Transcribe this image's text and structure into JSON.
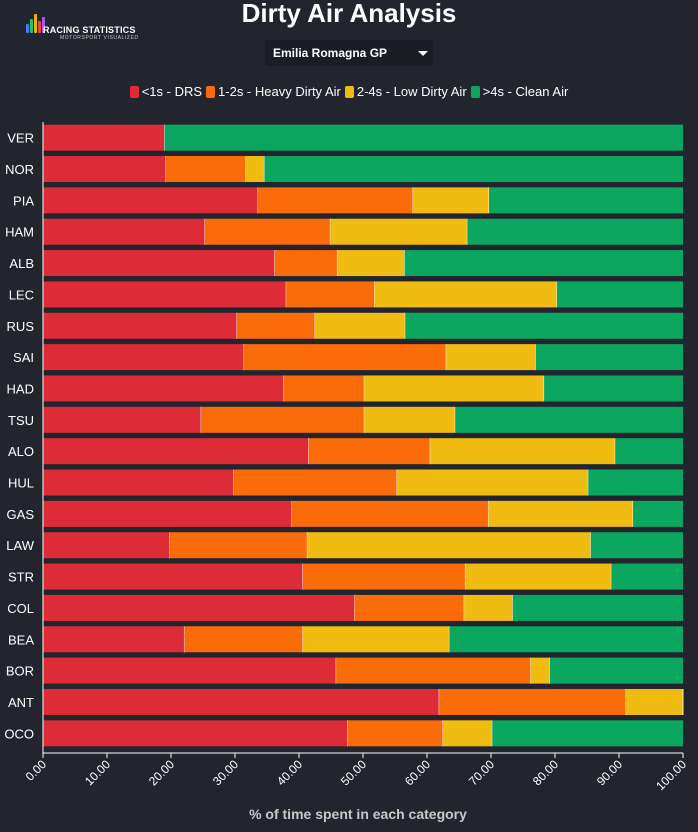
{
  "header": {
    "title": "Dirty Air Analysis",
    "logo_text": "RACING STATISTICS",
    "logo_subtitle": "MOTORSPORT VISUALIZED",
    "race_select": "Emilia Romagna GP"
  },
  "colors": {
    "drs": "#dd2b37",
    "heavy": "#fa6b0a",
    "low": "#f1bc12",
    "clean": "#0ba760",
    "background": "#22252e"
  },
  "chart_data": {
    "type": "bar",
    "orientation": "horizontal",
    "stacked": true,
    "xlabel": "% of time spent in each category",
    "ylabel": "",
    "xlim": [
      0,
      100
    ],
    "x_ticks": [
      "0.00",
      "10.00",
      "20.00",
      "30.00",
      "40.00",
      "50.00",
      "60.00",
      "70.00",
      "80.00",
      "90.00",
      "100.00"
    ],
    "legend_position": "top",
    "categories": [
      "VER",
      "NOR",
      "PIA",
      "HAM",
      "ALB",
      "LEC",
      "RUS",
      "SAI",
      "HAD",
      "TSU",
      "ALO",
      "HUL",
      "GAS",
      "LAW",
      "STR",
      "COL",
      "BEA",
      "BOR",
      "ANT",
      "OCO"
    ],
    "series": [
      {
        "name": "<1s - DRS",
        "color": "#dd2b37",
        "values": [
          19.0,
          19.2,
          33.6,
          25.3,
          36.2,
          38.0,
          30.3,
          31.4,
          37.6,
          24.7,
          41.5,
          29.8,
          38.9,
          19.8,
          40.6,
          48.7,
          22.1,
          45.8,
          61.9,
          47.6
        ]
      },
      {
        "name": "1-2s - Heavy Dirty Air",
        "color": "#fa6b0a",
        "values": [
          0.0,
          12.5,
          24.2,
          19.6,
          9.8,
          13.8,
          12.2,
          31.6,
          12.6,
          25.5,
          19.0,
          25.5,
          30.7,
          21.5,
          25.4,
          17.1,
          18.5,
          30.4,
          29.2,
          14.9
        ]
      },
      {
        "name": "2-4s - Low Dirty Air",
        "color": "#f1bc12",
        "values": [
          0.0,
          2.9,
          11.9,
          21.4,
          10.5,
          28.5,
          14.1,
          14.0,
          28.1,
          14.2,
          28.9,
          29.9,
          22.6,
          44.3,
          22.8,
          7.6,
          22.9,
          3.0,
          8.9,
          7.7
        ]
      },
      {
        "name": ">4s - Clean Air",
        "color": "#0ba760",
        "values": [
          81.0,
          65.4,
          30.3,
          33.7,
          43.5,
          19.7,
          43.4,
          23.0,
          21.7,
          35.6,
          10.6,
          14.8,
          7.8,
          14.4,
          11.2,
          26.6,
          36.5,
          20.8,
          0.0,
          29.8
        ]
      }
    ]
  }
}
